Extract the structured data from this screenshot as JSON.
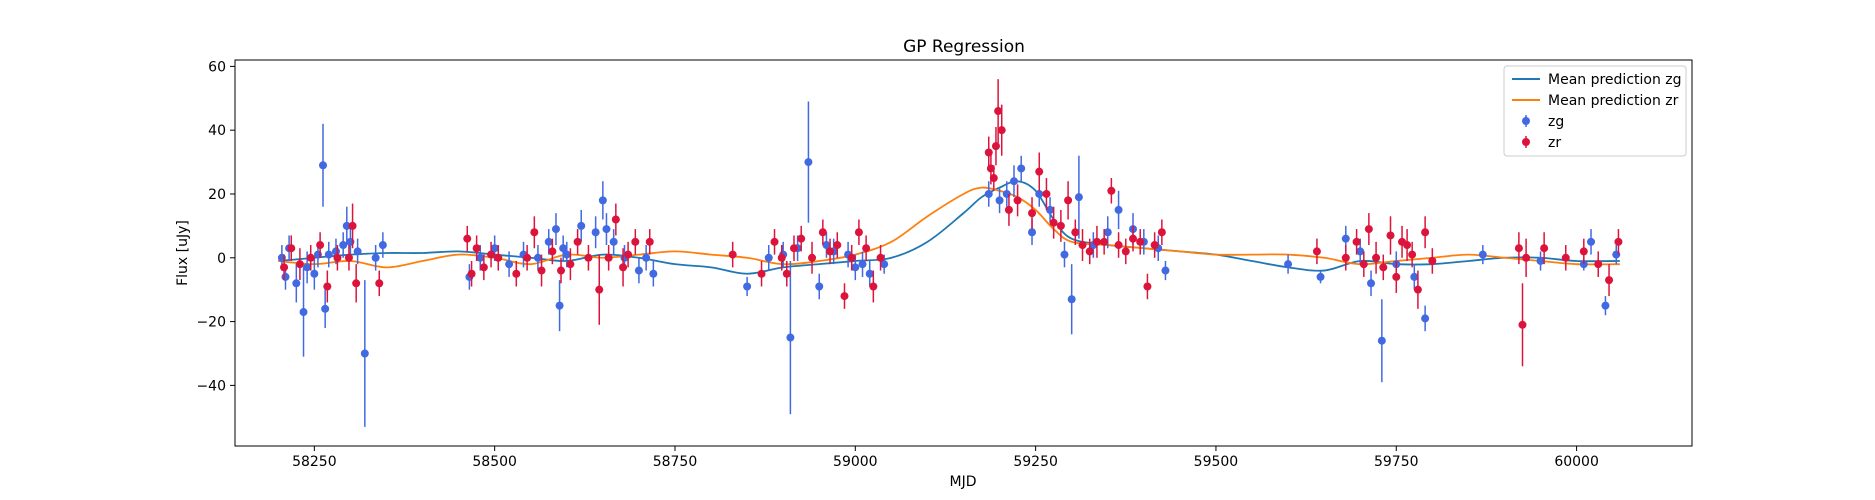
{
  "chart_data": {
    "type": "scatter",
    "title": "GP Regression",
    "xlabel": "MJD",
    "ylabel": "Flux [uJy]",
    "xlim": [
      58140,
      60160
    ],
    "ylim": [
      -59,
      62
    ],
    "x_ticks": [
      58250,
      58500,
      58750,
      59000,
      59250,
      59500,
      59750,
      60000
    ],
    "y_ticks": [
      -40,
      -20,
      0,
      20,
      40,
      60
    ],
    "grid": false,
    "legend_position": "top-right",
    "series": [
      {
        "name": "Mean prediction zg",
        "kind": "line",
        "color": "#1f77b4",
        "x": [
          58200,
          58250,
          58300,
          58350,
          58400,
          58450,
          58500,
          58550,
          58600,
          58650,
          58700,
          58750,
          58800,
          58850,
          58900,
          58950,
          59000,
          59050,
          59100,
          59150,
          59175,
          59200,
          59225,
          59250,
          59275,
          59300,
          59350,
          59400,
          59450,
          59500,
          59550,
          59600,
          59650,
          59700,
          59750,
          59800,
          59850,
          59900,
          59950,
          60000,
          60060
        ],
        "y": [
          -1,
          0,
          1,
          1.5,
          1.5,
          2,
          1,
          0,
          -1,
          1,
          0,
          -2,
          -3,
          -5,
          -3,
          -2,
          -1,
          0,
          5,
          14,
          19,
          22,
          24,
          21,
          12,
          6,
          4,
          3,
          2,
          1,
          -1,
          -3,
          -4,
          -1,
          -2,
          -2,
          -1,
          0,
          0,
          -1,
          -1
        ]
      },
      {
        "name": "Mean prediction zr",
        "kind": "line",
        "color": "#ff7f0e",
        "x": [
          58200,
          58250,
          58300,
          58350,
          58400,
          58450,
          58500,
          58550,
          58600,
          58650,
          58700,
          58750,
          58800,
          58850,
          58900,
          58950,
          59000,
          59050,
          59100,
          59150,
          59175,
          59200,
          59225,
          59250,
          59275,
          59300,
          59350,
          59400,
          59450,
          59500,
          59550,
          59600,
          59650,
          59700,
          59750,
          59800,
          59850,
          59900,
          59950,
          60000,
          60060
        ],
        "y": [
          -1,
          -2,
          -1,
          -3,
          -1,
          1,
          0,
          -2,
          1,
          0,
          1,
          2,
          1,
          0,
          -2,
          -1,
          1,
          5,
          13,
          20,
          22,
          21,
          19,
          15,
          9,
          5,
          4,
          3,
          2,
          1,
          1,
          1,
          0,
          -2,
          -1,
          0,
          1,
          0,
          -1,
          -2,
          -2
        ]
      },
      {
        "name": "zg",
        "kind": "errorbar",
        "color": "#4169e1",
        "x": [
          58205,
          58210,
          58215,
          58225,
          58235,
          58240,
          58250,
          58255,
          58262,
          58265,
          58270,
          58280,
          58290,
          58295,
          58300,
          58310,
          58320,
          58335,
          58345,
          58465,
          58480,
          58500,
          58520,
          58540,
          58560,
          58575,
          58585,
          58590,
          58595,
          58600,
          58620,
          58640,
          58650,
          58655,
          58665,
          58680,
          58700,
          58710,
          58720,
          58850,
          58880,
          58900,
          58910,
          58920,
          58935,
          58950,
          58960,
          58970,
          58990,
          59000,
          59010,
          59020,
          59040,
          59185,
          59200,
          59210,
          59220,
          59230,
          59245,
          59255,
          59270,
          59290,
          59300,
          59310,
          59330,
          59350,
          59365,
          59385,
          59400,
          59420,
          59430,
          59600,
          59645,
          59680,
          59700,
          59715,
          59730,
          59750,
          59775,
          59790,
          59870,
          59950,
          60010,
          60020,
          60040,
          60055
        ],
        "y": [
          0,
          -6,
          3,
          -8,
          -17,
          -3,
          -5,
          1,
          29,
          -16,
          1,
          2,
          4,
          10,
          5,
          2,
          -30,
          0,
          4,
          -6,
          0,
          3,
          -2,
          1,
          0,
          5,
          9,
          -15,
          3,
          1,
          10,
          8,
          18,
          9,
          5,
          0,
          -4,
          0,
          -5,
          -9,
          0,
          1,
          -25,
          3,
          30,
          -9,
          4,
          2,
          1,
          -3,
          -2,
          -5,
          -2,
          20,
          18,
          20,
          24,
          28,
          8,
          20,
          15,
          1,
          -13,
          19,
          4,
          8,
          15,
          9,
          5,
          3,
          -4,
          -2,
          -6,
          6,
          2,
          -8,
          -26,
          -2,
          -6,
          -19,
          1,
          -1,
          -2,
          5,
          -15,
          1
        ],
        "yerr": [
          4,
          4,
          4,
          6,
          14,
          5,
          5,
          4,
          13,
          6,
          4,
          4,
          4,
          6,
          5,
          4,
          23,
          4,
          4,
          4,
          4,
          4,
          4,
          4,
          4,
          4,
          5,
          8,
          4,
          4,
          5,
          5,
          6,
          5,
          4,
          4,
          4,
          4,
          4,
          3,
          4,
          4,
          24,
          4,
          19,
          4,
          4,
          4,
          4,
          4,
          4,
          4,
          3,
          4,
          4,
          4,
          5,
          4,
          4,
          4,
          4,
          4,
          11,
          13,
          4,
          5,
          6,
          5,
          4,
          4,
          3,
          3,
          2,
          4,
          4,
          4,
          13,
          4,
          4,
          4,
          3,
          3,
          2,
          4,
          3,
          3
        ]
      },
      {
        "name": "zr",
        "kind": "errorbar",
        "color": "#dc143c",
        "x": [
          58208,
          58218,
          58230,
          58245,
          58258,
          58268,
          58282,
          58298,
          58303,
          58308,
          58340,
          58462,
          58468,
          58475,
          58485,
          58495,
          58505,
          58530,
          58545,
          58555,
          58565,
          58580,
          58592,
          58605,
          58615,
          58630,
          58645,
          58658,
          58668,
          58678,
          58685,
          58695,
          58715,
          58830,
          58870,
          58888,
          58898,
          58905,
          58915,
          58925,
          58940,
          58955,
          58965,
          58975,
          58985,
          58995,
          59005,
          59015,
          59025,
          59035,
          59185,
          59188,
          59192,
          59195,
          59198,
          59203,
          59213,
          59225,
          59245,
          59255,
          59265,
          59275,
          59285,
          59295,
          59305,
          59315,
          59325,
          59335,
          59345,
          59355,
          59365,
          59375,
          59385,
          59395,
          59405,
          59415,
          59425,
          59640,
          59680,
          59695,
          59705,
          59712,
          59722,
          59732,
          59742,
          59750,
          59758,
          59765,
          59772,
          59780,
          59790,
          59800,
          59920,
          59925,
          59930,
          59955,
          59985,
          60010,
          60030,
          60045,
          60058
        ],
        "y": [
          -3,
          3,
          -2,
          0,
          4,
          -9,
          0,
          0,
          10,
          -8,
          -8,
          6,
          -5,
          3,
          -3,
          1,
          0,
          -5,
          0,
          8,
          -4,
          2,
          -4,
          -2,
          5,
          0,
          -10,
          0,
          12,
          -3,
          1,
          5,
          5,
          1,
          -5,
          5,
          0,
          -5,
          3,
          6,
          0,
          8,
          2,
          4,
          -12,
          0,
          8,
          3,
          -9,
          0,
          33,
          28,
          25,
          35,
          46,
          40,
          15,
          18,
          14,
          27,
          20,
          11,
          10,
          18,
          8,
          4,
          2,
          5,
          5,
          21,
          4,
          2,
          6,
          5,
          -9,
          4,
          8,
          2,
          0,
          5,
          -2,
          9,
          0,
          -3,
          7,
          -6,
          5,
          4,
          1,
          -10,
          8,
          -1,
          3,
          -21,
          0,
          3,
          0,
          2,
          -2,
          -7,
          5
        ],
        "yerr": [
          4,
          4,
          5,
          4,
          4,
          5,
          4,
          4,
          7,
          6,
          4,
          4,
          4,
          4,
          4,
          4,
          4,
          4,
          4,
          5,
          5,
          4,
          4,
          5,
          4,
          4,
          11,
          4,
          5,
          6,
          4,
          4,
          4,
          4,
          4,
          4,
          4,
          4,
          4,
          4,
          5,
          4,
          4,
          4,
          4,
          4,
          4,
          4,
          5,
          4,
          5,
          5,
          4,
          6,
          10,
          8,
          5,
          5,
          5,
          6,
          5,
          5,
          5,
          6,
          4,
          5,
          4,
          5,
          4,
          4,
          4,
          4,
          4,
          4,
          4,
          4,
          4,
          4,
          4,
          4,
          4,
          5,
          5,
          4,
          6,
          5,
          5,
          5,
          4,
          6,
          5,
          4,
          5,
          13,
          6,
          5,
          4,
          4,
          4,
          5,
          4
        ]
      }
    ]
  }
}
